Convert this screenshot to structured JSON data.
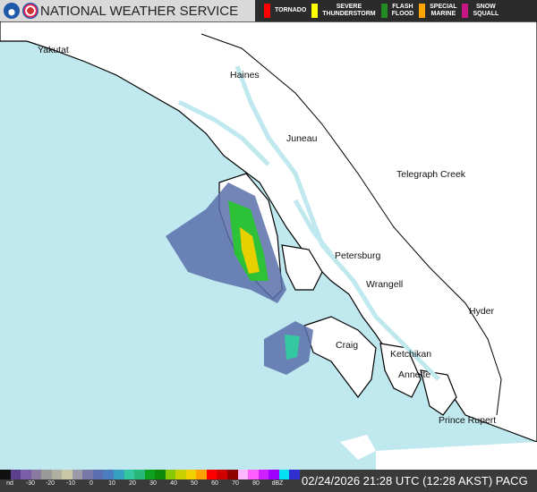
{
  "header": {
    "title": "NATIONAL WEATHER SERVICE",
    "warnings": [
      {
        "label": "TORNADO",
        "color": "#ff0000"
      },
      {
        "label": "SEVERE\nTHUNDERSTORM",
        "color": "#ffff00"
      },
      {
        "label": "FLASH\nFLOOD",
        "color": "#228b22"
      },
      {
        "label": "SPECIAL\nMARINE",
        "color": "#ffa500"
      },
      {
        "label": "SNOW\nSQUALL",
        "color": "#c71585"
      }
    ]
  },
  "map": {
    "colors": {
      "ocean": "#c0e8ef",
      "land": "#ffffff",
      "coast": "#000000"
    },
    "cities": [
      "Yakutat",
      "Haines",
      "Juneau",
      "Telegraph Creek",
      "Petersburg",
      "Wrangell",
      "Hyder",
      "Craig",
      "Ketchikan",
      "Annette",
      "Prince Rupert"
    ]
  },
  "legend": {
    "colors": [
      "#111111",
      "#5a3f8a",
      "#7a5fa8",
      "#8a7aa0",
      "#999999",
      "#b0b0a0",
      "#c8c8a8",
      "#9a9aa8",
      "#7878a8",
      "#5a6eb0",
      "#4a7ec0",
      "#36a0c0",
      "#34c8a0",
      "#28b878",
      "#10a020",
      "#0c8a08",
      "#88c800",
      "#c8d000",
      "#f0d000",
      "#ffa000",
      "#ff0000",
      "#d00000",
      "#900000",
      "#ffb8ff",
      "#ff60ff",
      "#d020ff",
      "#a000ff",
      "#00e0f0",
      "#3030d0"
    ],
    "ticks": [
      "nd",
      "-30",
      "-20",
      "-10",
      "0",
      "10",
      "20",
      "30",
      "40",
      "50",
      "60",
      "70",
      "80",
      "dBZ"
    ]
  },
  "timestamp": "02/24/2026 21:28 UTC (12:28 AKST) PACG"
}
